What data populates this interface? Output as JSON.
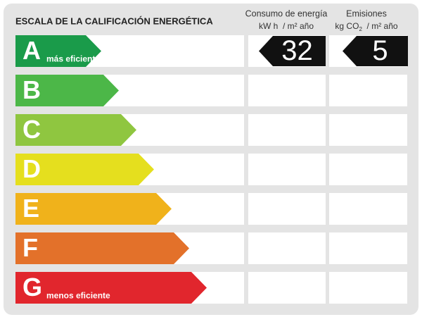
{
  "header": {
    "title": "ESCALA DE LA CALIFICACIÓN ENERGÉTICA",
    "consumption": {
      "title": "Consumo de energía",
      "unit": "kW h  / m² año"
    },
    "emissions": {
      "title": "Emisiones",
      "unit_parts": [
        "kg CO",
        "2",
        "  / m² año"
      ]
    }
  },
  "rows": [
    {
      "letter": "A",
      "note": "más eficiente",
      "color": "#1a9b4a",
      "consumption": 32,
      "emissions": 5
    },
    {
      "letter": "B",
      "color": "#4cb748"
    },
    {
      "letter": "C",
      "color": "#8fc640"
    },
    {
      "letter": "D",
      "color": "#e5df1e"
    },
    {
      "letter": "E",
      "color": "#f0b21b"
    },
    {
      "letter": "F",
      "color": "#e3712a"
    },
    {
      "letter": "G",
      "note": "menos eficiente",
      "color": "#e1262d"
    }
  ]
}
